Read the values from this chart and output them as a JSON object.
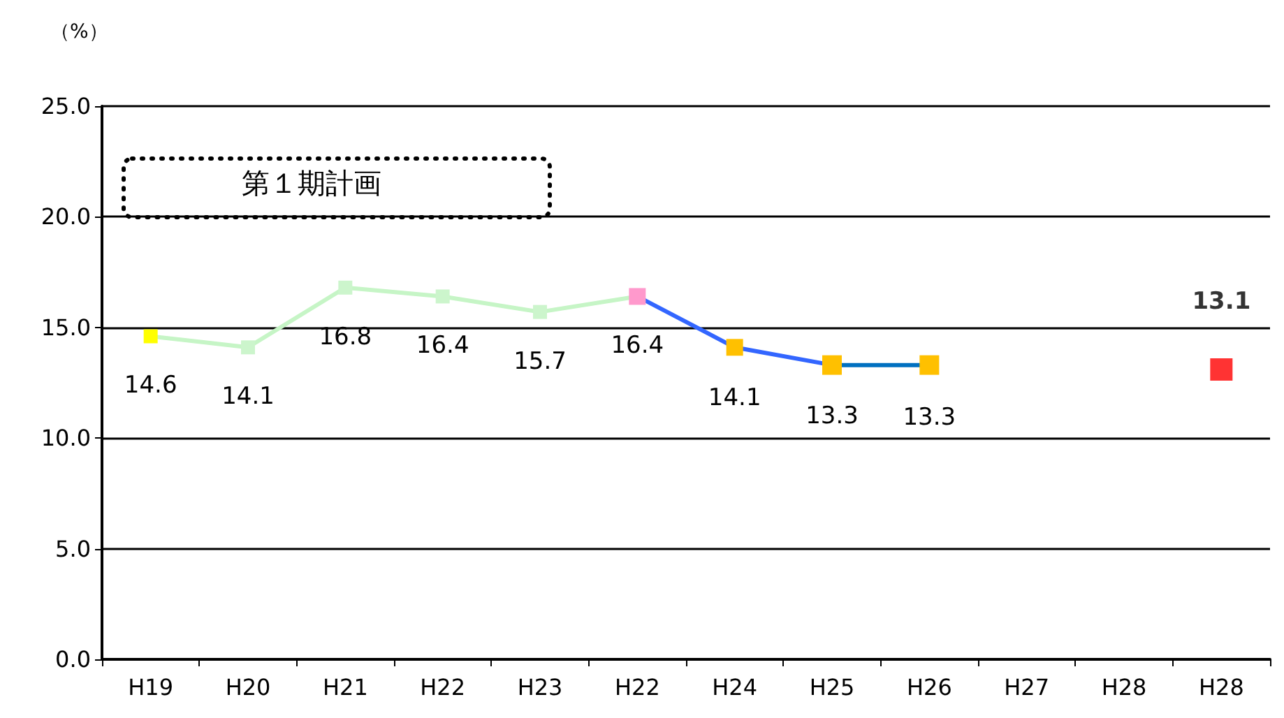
{
  "chart_data": {
    "type": "line",
    "ylabel": "（%）",
    "categories": [
      "H19",
      "H20",
      "H21",
      "H22",
      "H23",
      "H22",
      "H24",
      "H25",
      "H26",
      "H27",
      "H28",
      "H28"
    ],
    "series": [
      {
        "color": "#c6f5c6",
        "colors": [
          "#ffff00",
          "#ccf5cc",
          "#ccf5cc",
          "#ccf5cc",
          "#ccf5cc",
          "#ff99cc",
          null,
          null,
          null,
          null,
          null,
          null
        ],
        "values": [
          14.6,
          14.1,
          16.8,
          16.4,
          15.7,
          16.4,
          null,
          null,
          null,
          null,
          null,
          null
        ]
      },
      {
        "color": "#3366ff",
        "colors": [
          null,
          null,
          null,
          null,
          null,
          "#ff99cc",
          "#ffc000",
          "#ffc000",
          null,
          null,
          null,
          null
        ],
        "values": [
          null,
          null,
          null,
          null,
          null,
          16.4,
          14.1,
          13.3,
          null,
          null,
          null,
          null
        ],
        "value_labels": [
          null,
          null,
          null,
          null,
          null,
          null,
          "14.1",
          "13.3",
          null,
          null,
          null,
          null
        ]
      },
      {
        "color": "#0070c0",
        "colors": [
          null,
          null,
          null,
          null,
          null,
          null,
          null,
          "#ffc000",
          "#ffc000",
          null,
          null,
          null
        ],
        "values": [
          null,
          null,
          null,
          null,
          null,
          null,
          null,
          13.3,
          13.3,
          null,
          null,
          null
        ],
        "value_labels": [
          null,
          null,
          null,
          null,
          null,
          null,
          null,
          null,
          "13.3",
          null,
          null,
          null
        ]
      },
      {
        "type": "scatter",
        "color": "#ff0000",
        "values": [
          null,
          null,
          null,
          null,
          null,
          null,
          null,
          null,
          null,
          null,
          null,
          13.1
        ]
      }
    ],
    "ylim": [
      0,
      25
    ],
    "yticks": [
      {
        "value": 0,
        "label": "0.0"
      },
      {
        "value": 5,
        "label": "5.0"
      },
      {
        "value": 10,
        "label": "10.0"
      },
      {
        "value": 15,
        "label": "15.0"
      },
      {
        "value": 20,
        "label": "20.0"
      },
      {
        "value": 25,
        "label": "25.0"
      }
    ],
    "grid": "y",
    "marker": "square",
    "line_style": "solid",
    "data_labels": true,
    "annotations": [
      "第１期計画"
    ]
  }
}
